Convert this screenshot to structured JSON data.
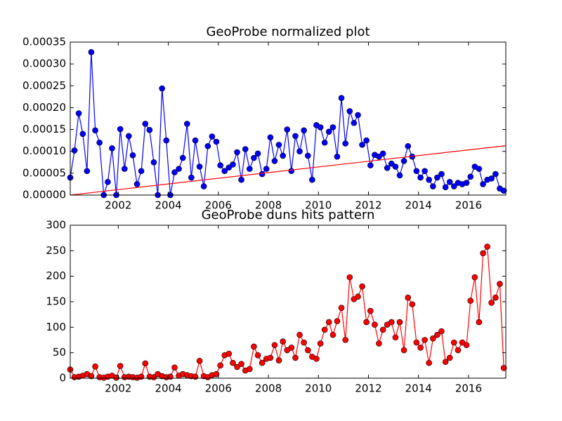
{
  "chart_data": [
    {
      "type": "line",
      "title": "GeoProbe normalized plot",
      "xlim": [
        2000.08,
        2017.49
      ],
      "xticks": [
        2002,
        2004,
        2006,
        2008,
        2010,
        2012,
        2014,
        2016
      ],
      "ylim": [
        0,
        0.00035
      ],
      "yticks": [
        {
          "value": 0,
          "label": "0.00000"
        },
        {
          "value": 5e-05,
          "label": "0.00005"
        },
        {
          "value": 0.0001,
          "label": "0.00010"
        },
        {
          "value": 0.00015,
          "label": "0.00015"
        },
        {
          "value": 0.0002,
          "label": "0.00020"
        },
        {
          "value": 0.00025,
          "label": "0.00025"
        },
        {
          "value": 0.0003,
          "label": "0.00030"
        },
        {
          "value": 0.00035,
          "label": "0.00035"
        }
      ],
      "series": [
        {
          "color": "#0000ff",
          "markers": true,
          "x": [
            2000.08,
            2000.25,
            2000.42,
            2000.58,
            2000.75,
            2000.92,
            2001.08,
            2001.25,
            2001.42,
            2001.58,
            2001.75,
            2001.92,
            2002.08,
            2002.25,
            2002.42,
            2002.58,
            2002.75,
            2002.92,
            2003.08,
            2003.25,
            2003.42,
            2003.58,
            2003.75,
            2003.92,
            2004.08,
            2004.25,
            2004.42,
            2004.58,
            2004.75,
            2004.92,
            2005.08,
            2005.25,
            2005.42,
            2005.58,
            2005.75,
            2005.92,
            2006.08,
            2006.25,
            2006.42,
            2006.58,
            2006.75,
            2006.92,
            2007.08,
            2007.25,
            2007.42,
            2007.58,
            2007.75,
            2007.92,
            2008.08,
            2008.25,
            2008.42,
            2008.58,
            2008.75,
            2008.92,
            2009.08,
            2009.25,
            2009.42,
            2009.58,
            2009.75,
            2009.92,
            2010.08,
            2010.25,
            2010.42,
            2010.58,
            2010.75,
            2010.92,
            2011.08,
            2011.25,
            2011.42,
            2011.58,
            2011.75,
            2011.92,
            2012.08,
            2012.25,
            2012.42,
            2012.58,
            2012.75,
            2012.92,
            2013.08,
            2013.25,
            2013.42,
            2013.58,
            2013.75,
            2013.92,
            2014.08,
            2014.25,
            2014.42,
            2014.58,
            2014.75,
            2014.92,
            2015.08,
            2015.25,
            2015.42,
            2015.58,
            2015.75,
            2015.92,
            2016.08,
            2016.25,
            2016.42,
            2016.58,
            2016.75,
            2016.92,
            2017.08,
            2017.25,
            2017.41
          ],
          "values": [
            4e-05,
            0.000102,
            0.000187,
            0.00014,
            5.5e-05,
            0.000327,
            0.000148,
            0.00012,
            0,
            3e-05,
            0.000107,
            0,
            0.000151,
            6e-05,
            0.000135,
            9.1e-05,
            2.5e-05,
            5.5e-05,
            0.000163,
            0.000149,
            7.5e-05,
            0,
            0.000244,
            0.000125,
            0,
            5.2e-05,
            6e-05,
            8.5e-05,
            0.000163,
            4e-05,
            0.000125,
            6.5e-05,
            2e-05,
            0.000112,
            0.000134,
            0.000122,
            6.8e-05,
            5.5e-05,
            6.3e-05,
            7e-05,
            9.8e-05,
            3.5e-05,
            0.000105,
            6e-05,
            8.5e-05,
            9.5e-05,
            4.8e-05,
            6e-05,
            0.000132,
            7.8e-05,
            0.000115,
            9e-05,
            0.00015,
            5.5e-05,
            0.000135,
            0.0001,
            0.000148,
            9e-05,
            3.5e-05,
            0.00016,
            0.000155,
            0.00012,
            0.000145,
            0.000155,
            8.8e-05,
            0.000222,
            0.000118,
            0.000192,
            0.000165,
            0.000183,
            0.000115,
            0.000125,
            6.8e-05,
            9.2e-05,
            8.8e-05,
            9.5e-05,
            6.2e-05,
            7.2e-05,
            6.5e-05,
            4.5e-05,
            7.8e-05,
            0.000112,
            8.8e-05,
            5.5e-05,
            4e-05,
            5.5e-05,
            3.5e-05,
            2e-05,
            4e-05,
            4.8e-05,
            1.8e-05,
            3e-05,
            2e-05,
            2.8e-05,
            2.5e-05,
            2.8e-05,
            4.2e-05,
            6.5e-05,
            6e-05,
            2.5e-05,
            3.5e-05,
            3.8e-05,
            4.8e-05,
            1.5e-05,
            1e-05
          ]
        },
        {
          "color": "#ff0000",
          "markers": false,
          "x": [
            2000.08,
            2017.49
          ],
          "values": [
            0,
            0.000113
          ]
        }
      ]
    },
    {
      "type": "line",
      "title": "GeoProbe duns hits pattern",
      "xlim": [
        2000.08,
        2017.49
      ],
      "xticks": [
        2002,
        2004,
        2006,
        2008,
        2010,
        2012,
        2014,
        2016
      ],
      "ylim": [
        0,
        300
      ],
      "yticks": [
        0,
        50,
        100,
        150,
        200,
        250,
        300
      ],
      "series": [
        {
          "color": "#ff0000",
          "markers": true,
          "x": [
            2000.08,
            2000.25,
            2000.42,
            2000.58,
            2000.75,
            2000.92,
            2001.08,
            2001.25,
            2001.42,
            2001.58,
            2001.75,
            2001.92,
            2002.08,
            2002.25,
            2002.42,
            2002.58,
            2002.75,
            2002.92,
            2003.08,
            2003.25,
            2003.42,
            2003.58,
            2003.75,
            2003.92,
            2004.08,
            2004.25,
            2004.42,
            2004.58,
            2004.75,
            2004.92,
            2005.08,
            2005.25,
            2005.42,
            2005.58,
            2005.75,
            2005.92,
            2006.08,
            2006.25,
            2006.42,
            2006.58,
            2006.75,
            2006.92,
            2007.08,
            2007.25,
            2007.42,
            2007.58,
            2007.75,
            2007.92,
            2008.08,
            2008.25,
            2008.42,
            2008.58,
            2008.75,
            2008.92,
            2009.08,
            2009.25,
            2009.42,
            2009.58,
            2009.75,
            2009.92,
            2010.08,
            2010.25,
            2010.42,
            2010.58,
            2010.75,
            2010.92,
            2011.08,
            2011.25,
            2011.42,
            2011.58,
            2011.75,
            2011.92,
            2012.08,
            2012.25,
            2012.42,
            2012.58,
            2012.75,
            2012.92,
            2013.08,
            2013.25,
            2013.42,
            2013.58,
            2013.75,
            2013.92,
            2014.08,
            2014.25,
            2014.42,
            2014.58,
            2014.75,
            2014.92,
            2015.08,
            2015.25,
            2015.42,
            2015.58,
            2015.75,
            2015.92,
            2016.08,
            2016.25,
            2016.42,
            2016.58,
            2016.75,
            2016.92,
            2017.08,
            2017.25,
            2017.41
          ],
          "values": [
            17,
            2,
            3,
            5,
            8,
            4,
            23,
            2,
            1,
            3,
            5,
            1,
            24,
            2,
            3,
            2,
            1,
            3,
            29,
            3,
            2,
            8,
            4,
            2,
            3,
            21,
            5,
            8,
            6,
            4,
            3,
            34,
            4,
            2,
            6,
            8,
            25,
            45,
            48,
            30,
            22,
            28,
            15,
            18,
            62,
            45,
            30,
            38,
            40,
            65,
            35,
            72,
            55,
            60,
            40,
            85,
            70,
            55,
            42,
            38,
            68,
            95,
            110,
            85,
            112,
            138,
            75,
            198,
            155,
            160,
            180,
            110,
            132,
            105,
            68,
            95,
            105,
            110,
            80,
            110,
            55,
            158,
            145,
            70,
            60,
            75,
            30,
            78,
            85,
            92,
            32,
            40,
            70,
            55,
            70,
            65,
            152,
            198,
            110,
            245,
            258,
            148,
            158,
            185,
            20
          ]
        }
      ]
    }
  ]
}
